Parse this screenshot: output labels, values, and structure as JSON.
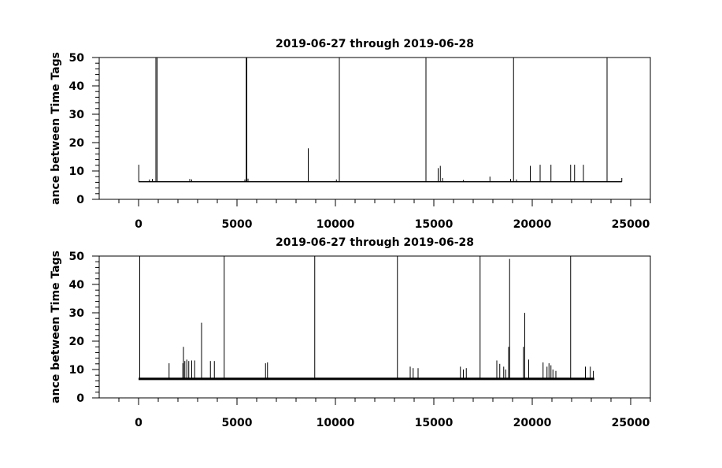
{
  "chart_data": [
    {
      "type": "line",
      "title": "2019-06-27 through 2019-06-28",
      "xlabel": "",
      "ylabel": "ance between Time Tags",
      "xlim": [
        -2000,
        26000
      ],
      "ylim": [
        0,
        50
      ],
      "x_ticks": [
        0,
        5000,
        10000,
        15000,
        20000,
        25000
      ],
      "x_tick_labels": [
        "0",
        "5000",
        "10000",
        "15000",
        "20000",
        "25000"
      ],
      "y_ticks": [
        0,
        10,
        20,
        30,
        40,
        50
      ],
      "y_tick_labels": [
        "0",
        "10",
        "20",
        "30",
        "40",
        "50"
      ],
      "grid": false,
      "series": [
        {
          "baseline": 6.2,
          "x_range": [
            0,
            24550
          ],
          "spikes": [
            [
              10,
              12.2
            ],
            [
              550,
              7.0
            ],
            [
              700,
              7.2
            ],
            [
              880,
              50
            ],
            [
              940,
              50
            ],
            [
              2600,
              7.2
            ],
            [
              2700,
              7.0
            ],
            [
              5400,
              7.0
            ],
            [
              5470,
              50
            ],
            [
              5500,
              50
            ],
            [
              5560,
              7.3
            ],
            [
              8620,
              18
            ],
            [
              10050,
              7.0
            ],
            [
              10200,
              50
            ],
            [
              14600,
              50
            ],
            [
              15220,
              11
            ],
            [
              15330,
              11.8
            ],
            [
              15440,
              7.5
            ],
            [
              16500,
              6.8
            ],
            [
              17850,
              8.0
            ],
            [
              18900,
              7.2
            ],
            [
              19050,
              50
            ],
            [
              19200,
              7.0
            ],
            [
              19900,
              11.8
            ],
            [
              20400,
              12.2
            ],
            [
              20950,
              12.2
            ],
            [
              21950,
              12.2
            ],
            [
              22150,
              12.2
            ],
            [
              22600,
              12.2
            ],
            [
              23800,
              50
            ],
            [
              24550,
              7.5
            ]
          ]
        }
      ]
    },
    {
      "type": "line",
      "title": "2019-06-27 through 2019-06-28",
      "xlabel": "",
      "ylabel": "ance between Time Tags",
      "xlim": [
        -2000,
        26000
      ],
      "ylim": [
        0,
        50
      ],
      "x_ticks": [
        0,
        5000,
        10000,
        15000,
        20000,
        25000
      ],
      "x_tick_labels": [
        "0",
        "5000",
        "10000",
        "15000",
        "20000",
        "25000"
      ],
      "y_ticks": [
        0,
        10,
        20,
        30,
        40,
        50
      ],
      "y_tick_labels": [
        "0",
        "10",
        "20",
        "30",
        "40",
        "50"
      ],
      "grid": false,
      "series": [
        {
          "baseline": 6.7,
          "x_range": [
            0,
            23150
          ],
          "spikes": [
            [
              60,
              50
            ],
            [
              1550,
              12.2
            ],
            [
              2250,
              12.2
            ],
            [
              2280,
              18
            ],
            [
              2350,
              13
            ],
            [
              2450,
              13.5
            ],
            [
              2550,
              13
            ],
            [
              2700,
              13.2
            ],
            [
              2850,
              13.2
            ],
            [
              3200,
              26.5
            ],
            [
              3650,
              13
            ],
            [
              3850,
              13
            ],
            [
              4350,
              50
            ],
            [
              6450,
              12.2
            ],
            [
              6550,
              12.5
            ],
            [
              8950,
              50
            ],
            [
              13150,
              50
            ],
            [
              13800,
              11
            ],
            [
              13950,
              10.5
            ],
            [
              14200,
              10.5
            ],
            [
              16350,
              11
            ],
            [
              16500,
              10
            ],
            [
              16650,
              10.5
            ],
            [
              17350,
              50
            ],
            [
              18200,
              13.2
            ],
            [
              18350,
              12
            ],
            [
              18550,
              11
            ],
            [
              18650,
              10
            ],
            [
              18800,
              18
            ],
            [
              18850,
              49
            ],
            [
              19550,
              18
            ],
            [
              19620,
              30
            ],
            [
              19820,
              13.5
            ],
            [
              20550,
              12.5
            ],
            [
              20750,
              11
            ],
            [
              20850,
              12.2
            ],
            [
              20950,
              11.5
            ],
            [
              21050,
              10
            ],
            [
              21200,
              9.5
            ],
            [
              21950,
              50
            ],
            [
              22700,
              11
            ],
            [
              22950,
              11
            ],
            [
              23100,
              9.5
            ]
          ]
        }
      ]
    }
  ]
}
